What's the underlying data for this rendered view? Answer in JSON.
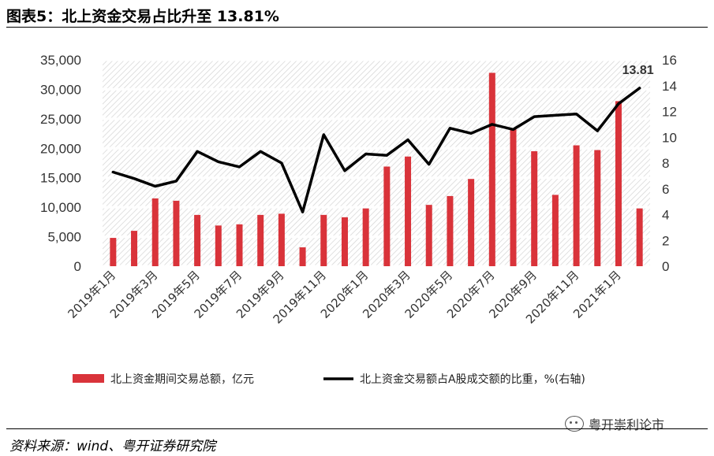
{
  "header": {
    "title": "图表5：北上资金交易占比升至 13.81%"
  },
  "footer": {
    "source": "资料来源：wind、粤开证券研究院"
  },
  "watermark": {
    "text": "粤开崇利论市",
    "icon": "wechat-icon"
  },
  "chart_data": {
    "type": "bar+line",
    "categories": [
      "2019年1月",
      "2019年2月",
      "2019年3月",
      "2019年4月",
      "2019年5月",
      "2019年6月",
      "2019年7月",
      "2019年8月",
      "2019年9月",
      "2019年10月",
      "2019年11月",
      "2019年12月",
      "2020年1月",
      "2020年2月",
      "2020年3月",
      "2020年4月",
      "2020年5月",
      "2020年6月",
      "2020年7月",
      "2020年8月",
      "2020年9月",
      "2020年10月",
      "2020年11月",
      "2020年12月",
      "2021年1月",
      "2021年2月"
    ],
    "xtick_labels": [
      "2019年1月",
      "2019年3月",
      "2019年5月",
      "2019年7月",
      "2019年9月",
      "2019年11月",
      "2020年1月",
      "2020年3月",
      "2020年5月",
      "2020年7月",
      "2020年9月",
      "2020年11月",
      "2021年1月"
    ],
    "series": [
      {
        "name": "北上资金期间交易总额，亿元",
        "type": "bar",
        "axis": "left",
        "color": "#d9333a",
        "values": [
          4800,
          6000,
          11500,
          11100,
          8700,
          6900,
          7100,
          8700,
          8900,
          3200,
          8700,
          8300,
          9800,
          16900,
          18600,
          10400,
          11900,
          14800,
          32800,
          23300,
          19500,
          12100,
          20500,
          19700,
          28000,
          9800
        ]
      },
      {
        "name": "北上资金交易额占A股成交额的比重，%(右轴)",
        "type": "line",
        "axis": "right",
        "color": "#000000",
        "values": [
          7.3,
          6.8,
          6.2,
          6.6,
          8.9,
          8.1,
          7.7,
          8.9,
          8.0,
          4.2,
          10.2,
          7.4,
          8.7,
          8.6,
          9.8,
          7.9,
          10.7,
          10.3,
          11.0,
          10.6,
          11.6,
          11.7,
          11.8,
          10.5,
          12.6,
          13.81
        ]
      }
    ],
    "yleft": {
      "min": 0,
      "max": 35000,
      "step": 5000
    },
    "yright": {
      "min": 0,
      "max": 16,
      "step": 2
    },
    "annotation": {
      "text": "13.81"
    },
    "legend": "bottom",
    "grid": true
  }
}
